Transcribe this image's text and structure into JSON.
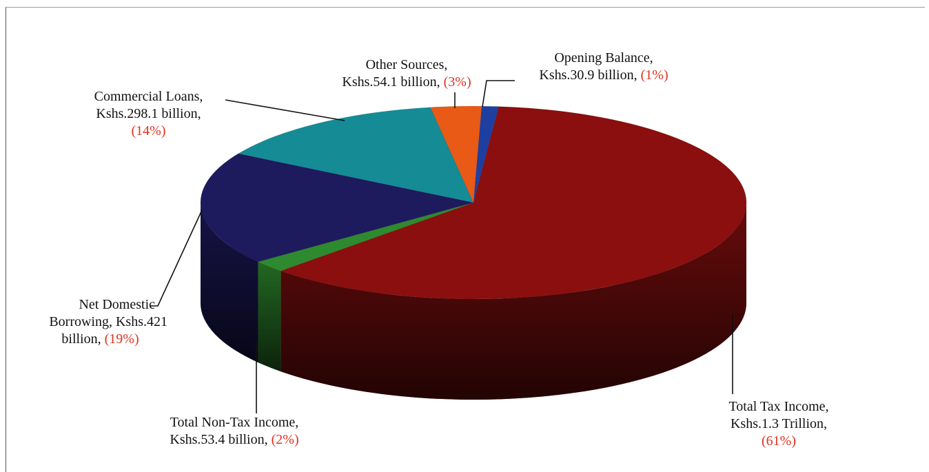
{
  "chart_data": {
    "type": "pie",
    "style": "3d",
    "title": "",
    "slices": [
      {
        "label": "Opening Balance",
        "amount": "Kshs.30.9 billion",
        "value": 1,
        "pct_text": "(1%)",
        "color": "#1f3fa0"
      },
      {
        "label": "Total Tax Income",
        "amount": "Kshs.1.3 Trillion",
        "value": 61,
        "pct_text": "(61%)",
        "color": "#8b0f0f"
      },
      {
        "label": "Total Non-Tax Income",
        "amount": "Kshs.53.4 billion",
        "value": 2,
        "pct_text": "(2%)",
        "color": "#2e8a2e"
      },
      {
        "label": "Net Domestic Borrowing",
        "amount": "Kshs.421 billion",
        "value": 19,
        "pct_text": "(19%)",
        "color": "#1e1a5e"
      },
      {
        "label": "Commercial Loans",
        "amount": "Kshs.298.1 billion",
        "value": 14,
        "pct_text": "(14%)",
        "color": "#158b96"
      },
      {
        "label": "Other Sources",
        "amount": "Kshs.54.1 billion",
        "value": 3,
        "pct_text": "(3%)",
        "color": "#e85a16"
      }
    ]
  },
  "labels": {
    "opening_l1": "Opening Balance,",
    "opening_l2": "Kshs.30.9 billion,",
    "opening_pct": "(1%)",
    "other_l1": "Other Sources,",
    "other_l2": "Kshs.54.1 billion,",
    "other_pct": "(3%)",
    "commercial_l1": "Commercial Loans,",
    "commercial_l2": "Kshs.298.1 billion,",
    "commercial_pct": "(14%)",
    "ndb_l1": "Net Domestic",
    "ndb_l2": "Borrowing, Kshs.421",
    "ndb_l3": "billion,",
    "ndb_pct": "(19%)",
    "nontax_l1": "Total Non-Tax Income,",
    "nontax_l2": "Kshs.53.4 billion,",
    "nontax_pct": "(2%)",
    "tax_l1": "Total Tax Income,",
    "tax_l2": "Kshs.1.3 Trillion,",
    "tax_pct": "(61%)"
  }
}
